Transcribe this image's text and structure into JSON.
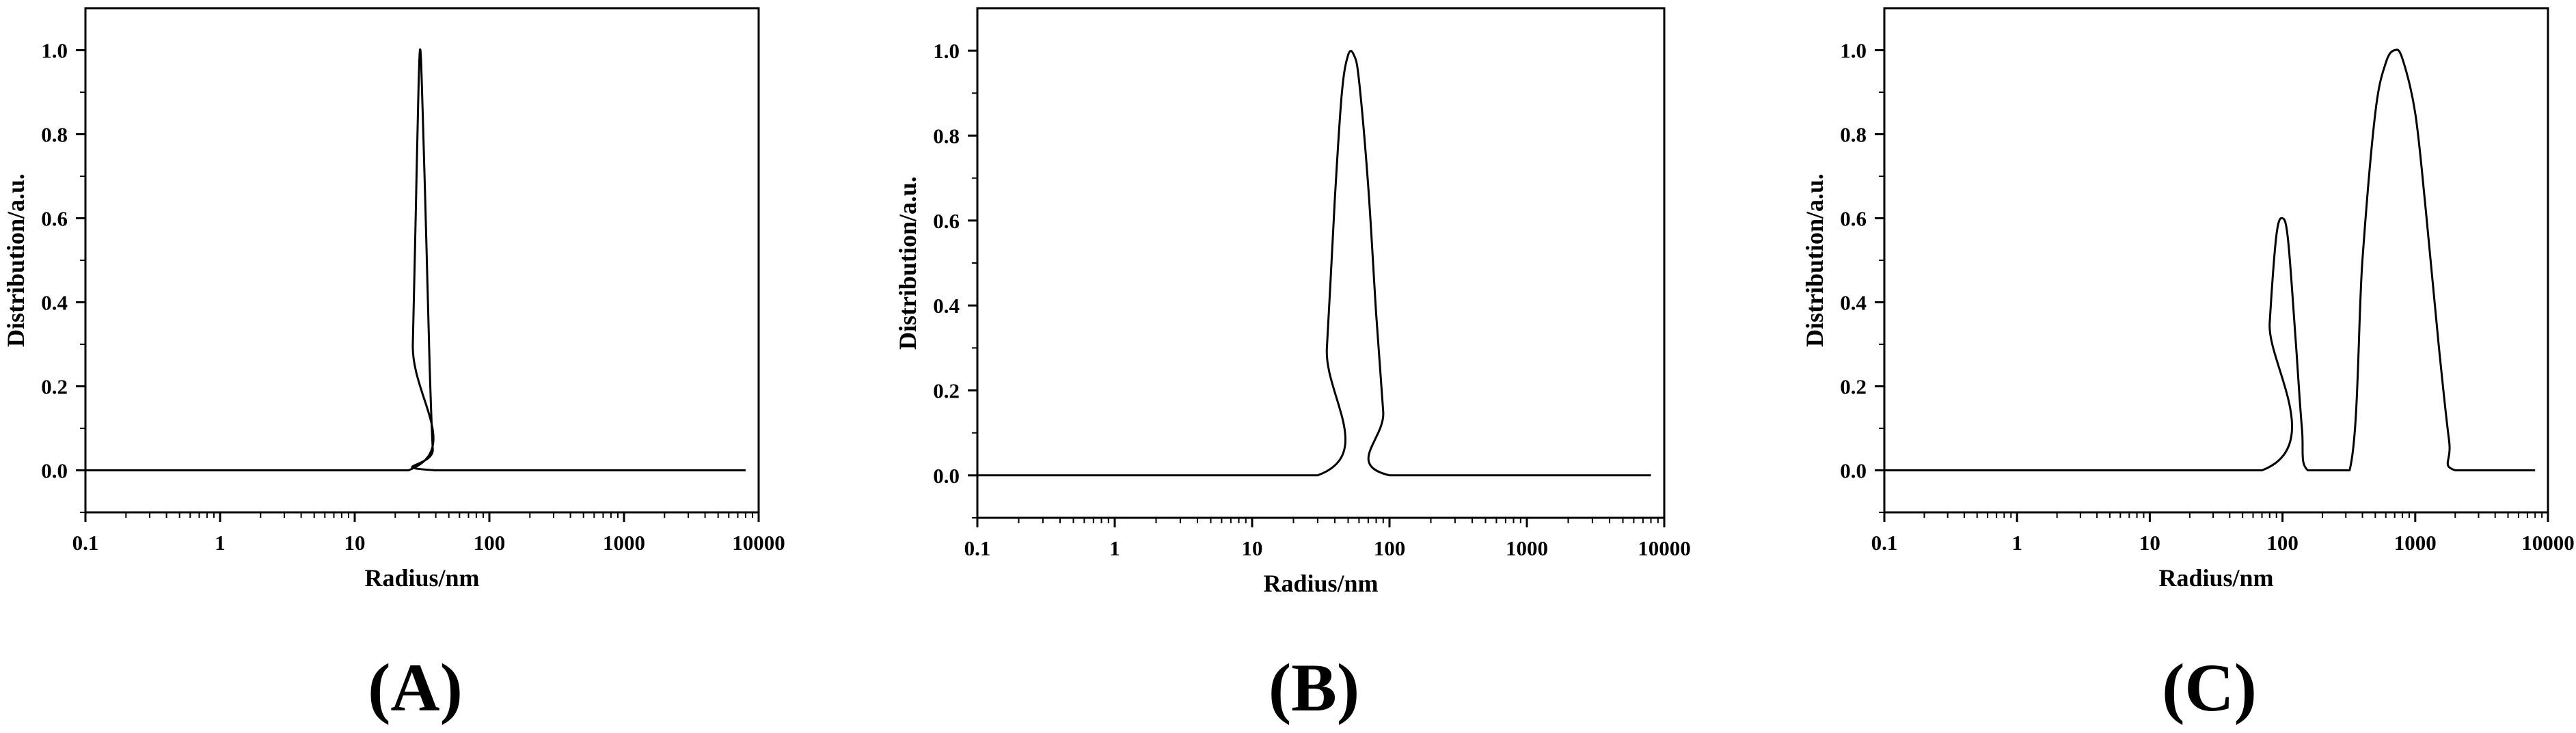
{
  "chart_data": [
    {
      "type": "line",
      "panel_label": "(A)",
      "xlabel": "Radius/nm",
      "ylabel": "Distribution/a.u.",
      "x_scale": "log",
      "xlim": [
        0.1,
        10000
      ],
      "ylim": [
        -0.1,
        1.1
      ],
      "x_ticks": [
        "0.1",
        "1",
        "10",
        "100",
        "1000",
        "10000"
      ],
      "y_ticks": [
        "0.0",
        "0.2",
        "0.4",
        "0.6",
        "0.8",
        "1.0"
      ],
      "series": [
        {
          "x": [
            0.1,
            25,
            27,
            29,
            30.5,
            32,
            34,
            36,
            38,
            40,
            8000
          ],
          "y": [
            0,
            0,
            0.3,
            0.75,
            1.0,
            0.85,
            0.55,
            0.25,
            0.05,
            0,
            0
          ]
        }
      ]
    },
    {
      "type": "line",
      "panel_label": "(B)",
      "xlabel": "Radius/nm",
      "ylabel": "Distribution/a.u.",
      "x_scale": "log",
      "xlim": [
        0.1,
        10000
      ],
      "ylim": [
        -0.1,
        1.1
      ],
      "x_ticks": [
        "0.1",
        "1",
        "10",
        "100",
        "1000",
        "10000"
      ],
      "y_ticks": [
        "0.0",
        "0.2",
        "0.4",
        "0.6",
        "0.8",
        "1.0"
      ],
      "series": [
        {
          "x": [
            0.1,
            30,
            35,
            40,
            45,
            50,
            55,
            60,
            70,
            80,
            90,
            100,
            8000
          ],
          "y": [
            0,
            0,
            0.3,
            0.65,
            0.9,
            0.99,
            0.99,
            0.93,
            0.68,
            0.38,
            0.15,
            0,
            0
          ]
        }
      ]
    },
    {
      "type": "line",
      "panel_label": "(C)",
      "xlabel": "Radius/nm",
      "ylabel": "Distribution/a.u.",
      "x_scale": "log",
      "xlim": [
        0.1,
        10000
      ],
      "ylim": [
        -0.1,
        1.1
      ],
      "x_ticks": [
        "0.1",
        "1",
        "10",
        "100",
        "1000",
        "10000"
      ],
      "y_ticks": [
        "0.0",
        "0.2",
        "0.4",
        "0.6",
        "0.8",
        "1.0"
      ],
      "series": [
        {
          "x": [
            0.1,
            70,
            80,
            90,
            100,
            110,
            125,
            140,
            155,
            320,
            400,
            500,
            600,
            700,
            800,
            1000,
            1200,
            1500,
            1800,
            2000,
            8000
          ],
          "y": [
            0,
            0,
            0.35,
            0.56,
            0.6,
            0.55,
            0.32,
            0.1,
            0,
            0,
            0.5,
            0.85,
            0.97,
            1.0,
            0.98,
            0.85,
            0.62,
            0.3,
            0.07,
            0,
            0
          ]
        }
      ]
    }
  ]
}
